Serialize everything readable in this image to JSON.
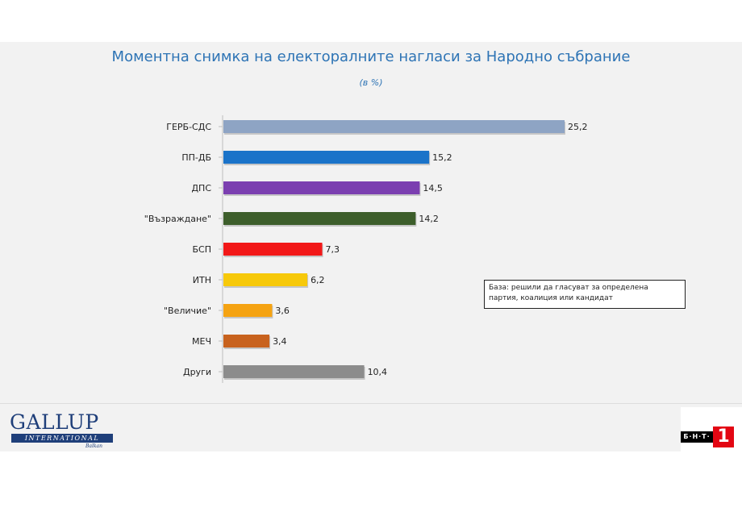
{
  "chart_data": {
    "type": "bar",
    "orientation": "horizontal",
    "title": "Моментна снимка на електоралните нагласи за Народно събрание",
    "subtitle": "(в %)",
    "categories": [
      "ГЕРБ-СДС",
      "ПП-ДБ",
      "ДПС",
      "\"Възраждане\"",
      "БСП",
      "ИТН",
      "\"Величие\"",
      "МЕЧ",
      "Други"
    ],
    "values": [
      25.2,
      15.2,
      14.5,
      14.2,
      7.3,
      6.2,
      3.6,
      3.4,
      10.4
    ],
    "value_labels": [
      "25,2",
      "15,2",
      "14,5",
      "14,2",
      "7,3",
      "6,2",
      "3,6",
      "3,4",
      "10,4"
    ],
    "colors": [
      "#8ea4c4",
      "#1a73c9",
      "#7b3fb0",
      "#3d5e2b",
      "#f21818",
      "#f7c90a",
      "#f5a312",
      "#c8621e",
      "#8c8c8c"
    ],
    "xlim": [
      0,
      28
    ],
    "grid": false,
    "legend": "none"
  },
  "note": {
    "line1": "База: решили да гласуват за определена",
    "line2": "партия, коалиция или кандидат"
  },
  "logos": {
    "gallup_word": "GALLUP",
    "gallup_band": "INTERNATIONAL",
    "gallup_sub": "Balkan",
    "bnt_text": "Б·Н·Т·",
    "bnt_number": "1"
  }
}
